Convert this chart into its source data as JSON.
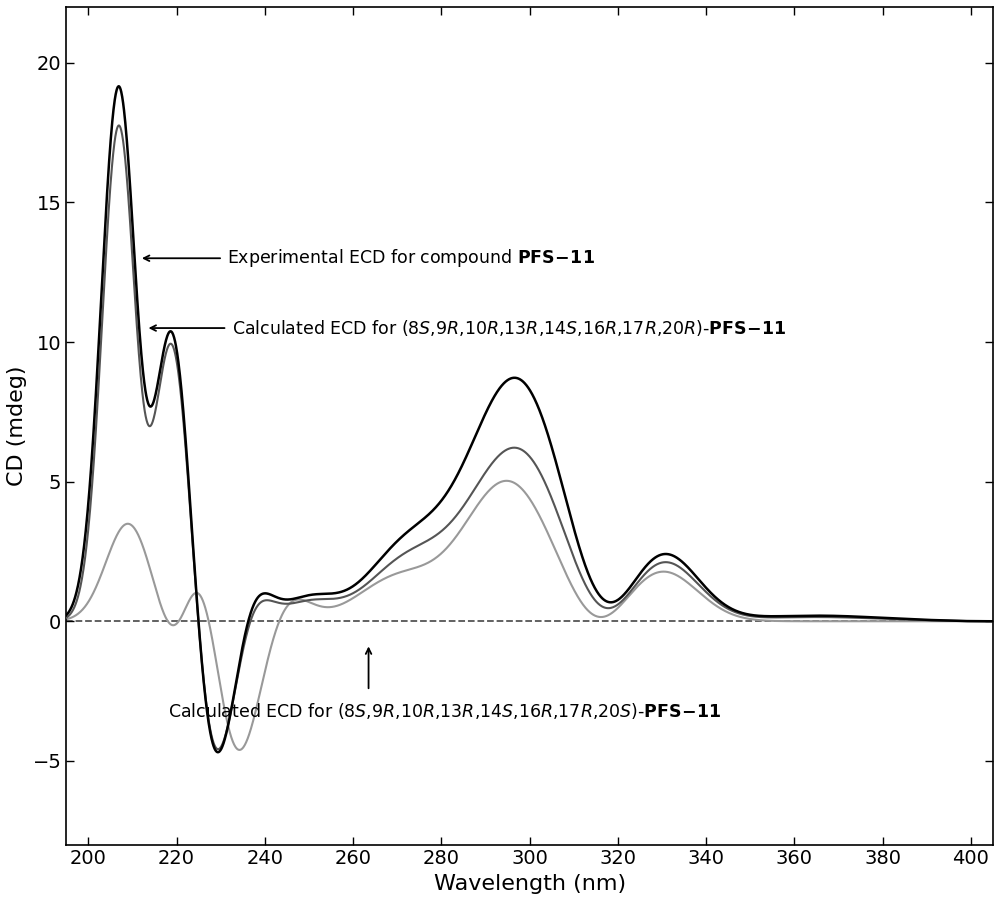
{
  "xlabel": "Wavelength (nm)",
  "ylabel": "CD (mdeg)",
  "xlim": [
    195,
    405
  ],
  "ylim": [
    -8,
    22
  ],
  "xticks": [
    200,
    220,
    240,
    260,
    280,
    300,
    320,
    340,
    360,
    380,
    400
  ],
  "yticks": [
    -5,
    0,
    5,
    10,
    15,
    20
  ],
  "background_color": "#ffffff",
  "line_color_exp": "#000000",
  "line_color_calc1": "#555555",
  "line_color_calc2": "#999999",
  "dashed_color": "#555555",
  "xlabel_fontsize": 16,
  "ylabel_fontsize": 16,
  "tick_fontsize": 14,
  "annot_fontsize": 12.5
}
